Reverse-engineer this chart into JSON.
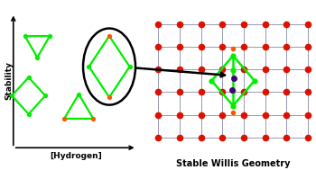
{
  "fig_width": 3.5,
  "fig_height": 1.89,
  "dpi": 100,
  "bg_color": "#ffffff",
  "left_panel": {
    "xlabel": "[Hydrogen]",
    "ylabel": "Stability",
    "label_fontsize": 6.5
  },
  "right_panel": {
    "label": "Stable Willis Geometry",
    "label_fontsize": 7.0,
    "grid_rows": 6,
    "grid_cols": 8,
    "ox_color": "#dd1100",
    "line_color": "#8888aa",
    "line_width": 0.6,
    "ox_ms": 5.5,
    "green_color": "#00ee00",
    "orange_color": "#ff5500",
    "purple_color": "#440077",
    "green_ms": 4.5,
    "orange_ms": 4.0,
    "purple_ms": 5.0,
    "green_lw": 1.8
  }
}
